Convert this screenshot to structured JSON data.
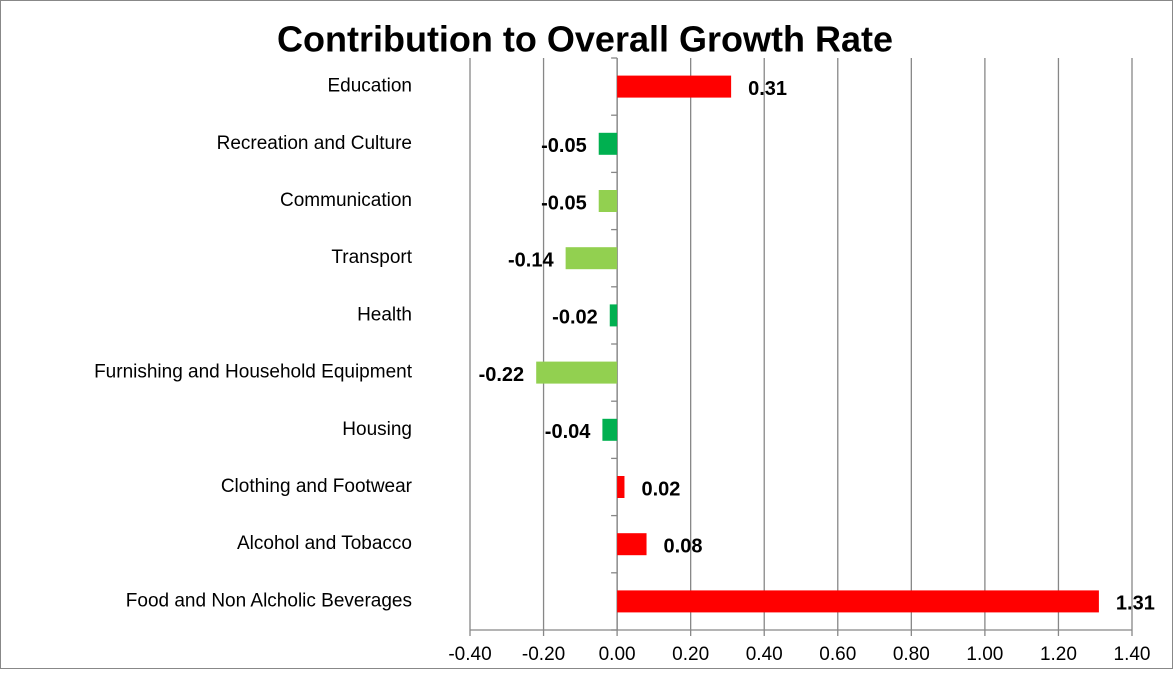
{
  "chart_data": {
    "type": "bar",
    "orientation": "horizontal",
    "title": "Contribution to Overall Growth Rate",
    "categories": [
      "Food and Non Alcholic Beverages",
      "Alcohol and Tobacco",
      "Clothing and Footwear",
      "Housing",
      "Furnishing and Household Equipment",
      "Health",
      "Transport",
      "Communication",
      "Recreation and Culture",
      "Education"
    ],
    "values": [
      1.31,
      0.08,
      0.02,
      -0.04,
      -0.22,
      -0.02,
      -0.14,
      -0.05,
      -0.05,
      0.31
    ],
    "colors": [
      "#ff0000",
      "#ff0000",
      "#ff0000",
      "#00b050",
      "#92d050",
      "#00b050",
      "#92d050",
      "#92d050",
      "#00b050",
      "#ff0000"
    ],
    "xlim": [
      -0.4,
      1.4
    ],
    "xticks": [
      {
        "value": -0.4,
        "label": "-0.40"
      },
      {
        "value": -0.2,
        "label": "-0.20"
      },
      {
        "value": 0,
        "label": "0.00"
      },
      {
        "value": 0.2,
        "label": "0.20"
      },
      {
        "value": 0.4,
        "label": "0.40"
      },
      {
        "value": 0.6,
        "label": "0.60"
      },
      {
        "value": 0.8,
        "label": "0.80"
      },
      {
        "value": 1.0,
        "label": "1.00"
      },
      {
        "value": 1.2,
        "label": "1.20"
      },
      {
        "value": 1.4,
        "label": "1.40"
      }
    ],
    "grid": true
  }
}
